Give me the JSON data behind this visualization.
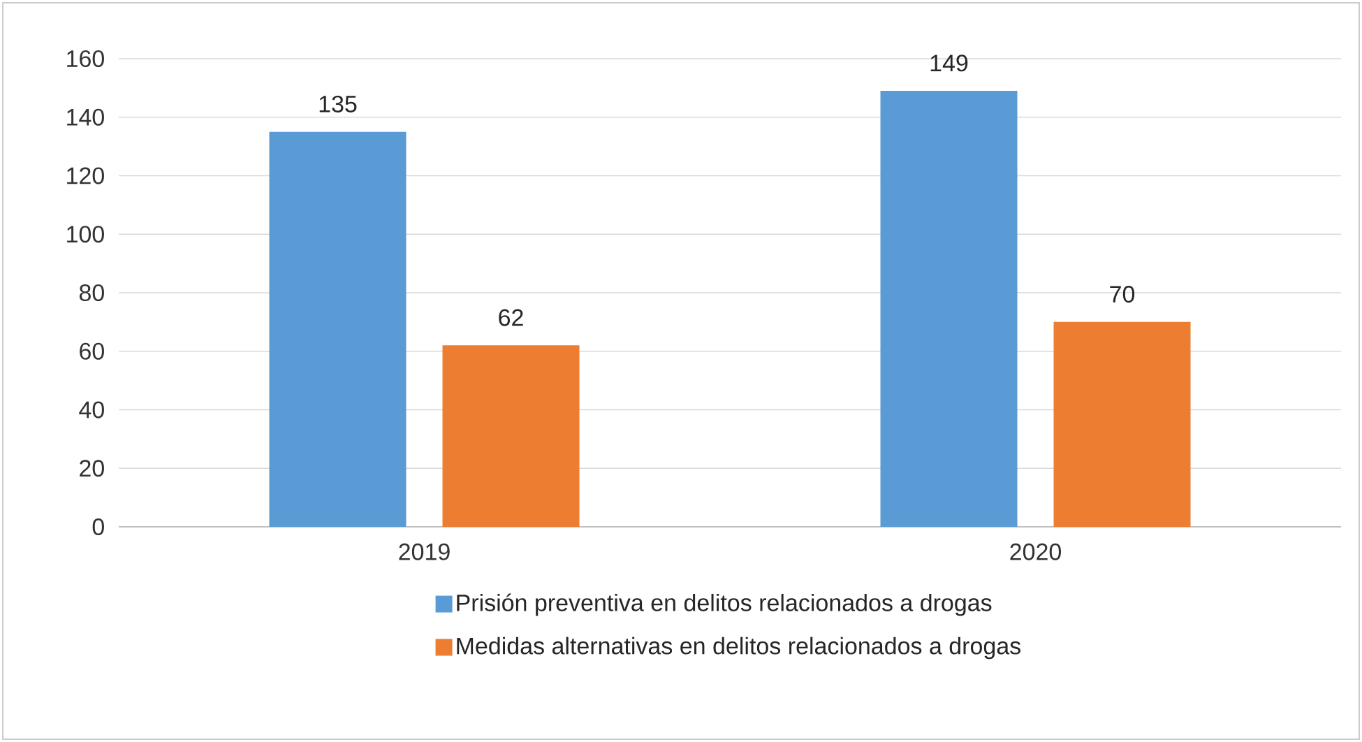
{
  "chart_data": {
    "type": "bar",
    "categories": [
      "2019",
      "2020"
    ],
    "series": [
      {
        "name": "Prisión preventiva en delitos relacionados a drogas",
        "color": "#5b9bd5",
        "values": [
          135,
          149
        ]
      },
      {
        "name": "Medidas alternativas en delitos relacionados a drogas",
        "color": "#ed7d31",
        "values": [
          62,
          70
        ]
      }
    ],
    "ylim": [
      0,
      160
    ],
    "yticks": [
      0,
      20,
      40,
      60,
      80,
      100,
      120,
      140,
      160
    ],
    "grid": "y",
    "data_labels": true,
    "legend": "bottom"
  }
}
